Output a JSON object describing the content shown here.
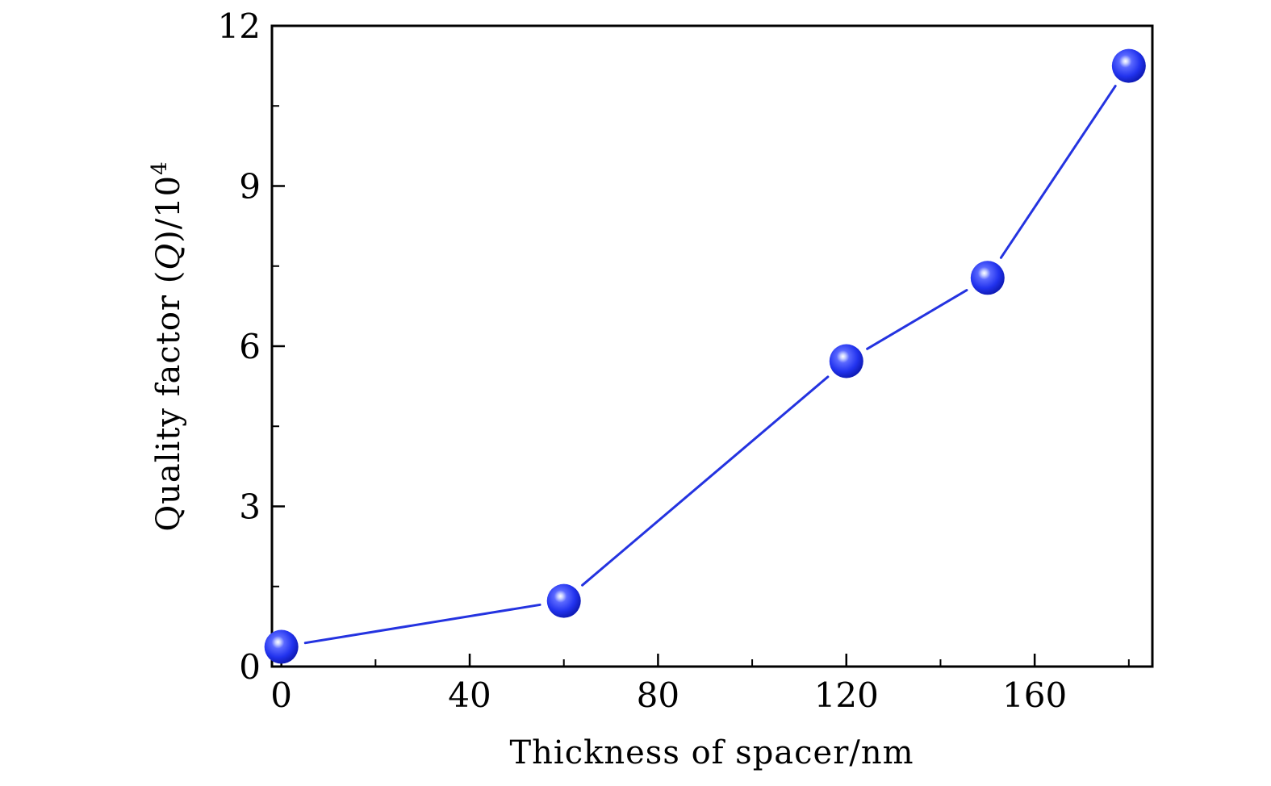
{
  "chart_data": {
    "type": "line",
    "title": "",
    "xlabel": "Thickness of spacer/nm",
    "ylabel": {
      "prefix": "Quality factor (",
      "symbol": "Q",
      "suffix": ")/10",
      "exponent": "4"
    },
    "xlim": [
      -2,
      185
    ],
    "ylim": [
      0,
      12
    ],
    "x_ticks": [
      0,
      40,
      80,
      120,
      160
    ],
    "y_ticks": [
      0,
      3,
      6,
      9,
      12
    ],
    "x_minor_ticks": [
      20,
      60,
      100,
      140,
      180
    ],
    "y_minor_ticks": [
      1.5,
      4.5,
      7.5,
      10.5
    ],
    "grid": false,
    "legend": "none",
    "series": [
      {
        "x": [
          0,
          60,
          120,
          150,
          180
        ],
        "y": [
          0.37,
          1.23,
          5.72,
          7.28,
          11.25
        ],
        "color": "#2433e0",
        "marker": "sphere"
      }
    ]
  }
}
